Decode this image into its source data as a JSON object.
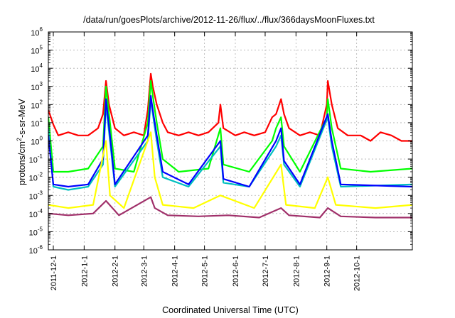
{
  "chart_data": {
    "type": "line",
    "title": "/data/run/goesPlots/archive/2012-11-26/flux/../flux/366daysMoonFluxes.txt",
    "xlabel": "Coordinated Universal Time (UTC)",
    "ylabel_main": "protons/cm",
    "ylabel_sup": "2",
    "ylabel_tail": "-s-sr-MeV",
    "x_range": [
      "2011-11-26",
      "2012-11-26"
    ],
    "ylim": [
      1e-06,
      1000000.0
    ],
    "y_scale": "log",
    "grid": true,
    "legend": "none",
    "x_ticks": [
      {
        "date": "2011-12-01",
        "label": "2011-12-1"
      },
      {
        "date": "2012-01-01",
        "label": "2012-1-1"
      },
      {
        "date": "2012-02-01",
        "label": "2012-2-1"
      },
      {
        "date": "2012-03-01",
        "label": "2012-3-1"
      },
      {
        "date": "2012-04-01",
        "label": "2012-4-1"
      },
      {
        "date": "2012-05-01",
        "label": "2012-5-1"
      },
      {
        "date": "2012-06-01",
        "label": "2012-6-1"
      },
      {
        "date": "2012-07-01",
        "label": "2012-7-1"
      },
      {
        "date": "2012-08-01",
        "label": "2012-8-1"
      },
      {
        "date": "2012-09-01",
        "label": "2012-9-1"
      },
      {
        "date": "2012-10-01",
        "label": "2012-10-1"
      }
    ],
    "y_ticks": [
      {
        "exp": -6,
        "base": "10",
        "sup": "-6"
      },
      {
        "exp": -5,
        "base": "10",
        "sup": "-5"
      },
      {
        "exp": -4,
        "base": "10",
        "sup": "-4"
      },
      {
        "exp": -3,
        "base": "10",
        "sup": "-3"
      },
      {
        "exp": -2,
        "base": "10",
        "sup": "-2"
      },
      {
        "exp": -1,
        "base": "10",
        "sup": "-1"
      },
      {
        "exp": 0,
        "base": "10",
        "sup": "0"
      },
      {
        "exp": 1,
        "base": "10",
        "sup": "1"
      },
      {
        "exp": 2,
        "base": "10",
        "sup": "2"
      },
      {
        "exp": 3,
        "base": "10",
        "sup": "3"
      },
      {
        "exp": 4,
        "base": "10",
        "sup": "4"
      },
      {
        "exp": 5,
        "base": "10",
        "sup": "5"
      },
      {
        "exp": 6,
        "base": "10",
        "sup": "6"
      }
    ],
    "series": [
      {
        "color": "#ff0000",
        "values": [
          [
            "2011-11-26",
            50
          ],
          [
            "2011-12-01",
            8
          ],
          [
            "2011-12-06",
            2
          ],
          [
            "2011-12-16",
            3
          ],
          [
            "2011-12-26",
            2
          ],
          [
            "2012-01-05",
            2
          ],
          [
            "2012-01-15",
            5
          ],
          [
            "2012-01-20",
            30
          ],
          [
            "2012-01-23",
            2000
          ],
          [
            "2012-01-26",
            100
          ],
          [
            "2012-02-01",
            5
          ],
          [
            "2012-02-10",
            2
          ],
          [
            "2012-02-20",
            3
          ],
          [
            "2012-03-01",
            2
          ],
          [
            "2012-03-05",
            50
          ],
          [
            "2012-03-08",
            5000
          ],
          [
            "2012-03-10",
            1000
          ],
          [
            "2012-03-14",
            100
          ],
          [
            "2012-03-20",
            10
          ],
          [
            "2012-03-25",
            3
          ],
          [
            "2012-04-05",
            2
          ],
          [
            "2012-04-15",
            3
          ],
          [
            "2012-04-25",
            2
          ],
          [
            "2012-05-05",
            3
          ],
          [
            "2012-05-15",
            10
          ],
          [
            "2012-05-17",
            100
          ],
          [
            "2012-05-20",
            5
          ],
          [
            "2012-06-01",
            2
          ],
          [
            "2012-06-10",
            3
          ],
          [
            "2012-06-20",
            2
          ],
          [
            "2012-07-01",
            3
          ],
          [
            "2012-07-08",
            20
          ],
          [
            "2012-07-12",
            30
          ],
          [
            "2012-07-17",
            200
          ],
          [
            "2012-07-20",
            30
          ],
          [
            "2012-07-25",
            5
          ],
          [
            "2012-08-05",
            2
          ],
          [
            "2012-08-15",
            3
          ],
          [
            "2012-08-25",
            2
          ],
          [
            "2012-09-01",
            100
          ],
          [
            "2012-09-02",
            2000
          ],
          [
            "2012-09-06",
            100
          ],
          [
            "2012-09-12",
            5
          ],
          [
            "2012-09-22",
            2
          ],
          [
            "2012-10-05",
            2
          ],
          [
            "2012-10-15",
            1
          ],
          [
            "2012-10-25",
            3
          ],
          [
            "2012-11-05",
            2
          ],
          [
            "2012-11-15",
            1
          ],
          [
            "2012-11-26",
            1
          ]
        ]
      },
      {
        "color": "#00ff00",
        "values": [
          [
            "2011-11-26",
            20
          ],
          [
            "2011-12-01",
            0.02
          ],
          [
            "2011-12-16",
            0.02
          ],
          [
            "2012-01-05",
            0.03
          ],
          [
            "2012-01-20",
            0.5
          ],
          [
            "2012-01-23",
            1000
          ],
          [
            "2012-01-27",
            10
          ],
          [
            "2012-02-01",
            0.03
          ],
          [
            "2012-02-20",
            0.02
          ],
          [
            "2012-03-05",
            10
          ],
          [
            "2012-03-08",
            2000
          ],
          [
            "2012-03-10",
            300
          ],
          [
            "2012-03-14",
            10
          ],
          [
            "2012-03-20",
            0.1
          ],
          [
            "2012-04-05",
            0.02
          ],
          [
            "2012-05-05",
            0.03
          ],
          [
            "2012-05-17",
            5
          ],
          [
            "2012-05-20",
            0.05
          ],
          [
            "2012-06-15",
            0.02
          ],
          [
            "2012-07-08",
            1
          ],
          [
            "2012-07-12",
            5
          ],
          [
            "2012-07-17",
            20
          ],
          [
            "2012-07-20",
            0.5
          ],
          [
            "2012-08-05",
            0.02
          ],
          [
            "2012-09-01",
            20
          ],
          [
            "2012-09-02",
            200
          ],
          [
            "2012-09-06",
            5
          ],
          [
            "2012-09-15",
            0.03
          ],
          [
            "2012-10-15",
            0.02
          ],
          [
            "2012-11-26",
            0.03
          ]
        ]
      },
      {
        "color": "#00bfbf",
        "values": [
          [
            "2011-11-26",
            5
          ],
          [
            "2011-12-01",
            0.003
          ],
          [
            "2011-12-16",
            0.002
          ],
          [
            "2012-01-05",
            0.003
          ],
          [
            "2012-01-20",
            0.05
          ],
          [
            "2012-01-23",
            100
          ],
          [
            "2012-01-27",
            1
          ],
          [
            "2012-02-01",
            0.003
          ],
          [
            "2012-03-05",
            1
          ],
          [
            "2012-03-08",
            200
          ],
          [
            "2012-03-10",
            30
          ],
          [
            "2012-03-14",
            1
          ],
          [
            "2012-03-20",
            0.01
          ],
          [
            "2012-04-15",
            0.003
          ],
          [
            "2012-05-17",
            0.5
          ],
          [
            "2012-05-20",
            0.005
          ],
          [
            "2012-06-15",
            0.003
          ],
          [
            "2012-07-12",
            0.5
          ],
          [
            "2012-07-17",
            2
          ],
          [
            "2012-07-20",
            0.05
          ],
          [
            "2012-08-05",
            0.003
          ],
          [
            "2012-09-02",
            20
          ],
          [
            "2012-09-06",
            0.5
          ],
          [
            "2012-09-15",
            0.003
          ],
          [
            "2012-11-26",
            0.004
          ]
        ]
      },
      {
        "color": "#0000ff",
        "values": [
          [
            "2011-11-26",
            2
          ],
          [
            "2011-12-01",
            0.004
          ],
          [
            "2011-12-16",
            0.003
          ],
          [
            "2012-01-05",
            0.004
          ],
          [
            "2012-01-20",
            0.1
          ],
          [
            "2012-01-23",
            200
          ],
          [
            "2012-01-27",
            2
          ],
          [
            "2012-02-01",
            0.004
          ],
          [
            "2012-03-05",
            2
          ],
          [
            "2012-03-08",
            300
          ],
          [
            "2012-03-10",
            50
          ],
          [
            "2012-03-14",
            2
          ],
          [
            "2012-03-20",
            0.02
          ],
          [
            "2012-04-15",
            0.004
          ],
          [
            "2012-05-17",
            1
          ],
          [
            "2012-05-20",
            0.008
          ],
          [
            "2012-06-15",
            0.003
          ],
          [
            "2012-07-12",
            1
          ],
          [
            "2012-07-17",
            5
          ],
          [
            "2012-07-20",
            0.08
          ],
          [
            "2012-08-05",
            0.004
          ],
          [
            "2012-09-02",
            30
          ],
          [
            "2012-09-06",
            1
          ],
          [
            "2012-09-15",
            0.004
          ],
          [
            "2012-11-26",
            0.003
          ]
        ]
      },
      {
        "color": "#ffff00",
        "values": [
          [
            "2011-11-26",
            0.0003
          ],
          [
            "2011-12-16",
            0.0002
          ],
          [
            "2012-01-10",
            0.0003
          ],
          [
            "2012-01-23",
            1
          ],
          [
            "2012-01-27",
            0.001
          ],
          [
            "2012-02-10",
            0.0002
          ],
          [
            "2012-03-08",
            3
          ],
          [
            "2012-03-12",
            0.01
          ],
          [
            "2012-03-20",
            0.0003
          ],
          [
            "2012-04-20",
            0.0002
          ],
          [
            "2012-05-17",
            0.001
          ],
          [
            "2012-06-20",
            0.0002
          ],
          [
            "2012-07-17",
            0.05
          ],
          [
            "2012-07-22",
            0.0003
          ],
          [
            "2012-08-20",
            0.0002
          ],
          [
            "2012-09-02",
            0.01
          ],
          [
            "2012-09-10",
            0.0003
          ],
          [
            "2012-10-20",
            0.0002
          ],
          [
            "2012-11-26",
            0.0003
          ]
        ]
      },
      {
        "color": "#a0306a",
        "values": [
          [
            "2011-11-26",
            0.0001
          ],
          [
            "2011-12-16",
            8e-05
          ],
          [
            "2012-01-10",
            0.0001
          ],
          [
            "2012-01-23",
            0.0005
          ],
          [
            "2012-02-05",
            8e-05
          ],
          [
            "2012-03-08",
            0.0008
          ],
          [
            "2012-03-12",
            0.0002
          ],
          [
            "2012-03-25",
            8e-05
          ],
          [
            "2012-04-25",
            7e-05
          ],
          [
            "2012-05-25",
            8e-05
          ],
          [
            "2012-06-25",
            6e-05
          ],
          [
            "2012-07-17",
            0.0002
          ],
          [
            "2012-07-25",
            8e-05
          ],
          [
            "2012-08-25",
            6e-05
          ],
          [
            "2012-09-02",
            0.0002
          ],
          [
            "2012-09-15",
            7e-05
          ],
          [
            "2012-10-20",
            6e-05
          ],
          [
            "2012-11-26",
            6e-05
          ]
        ]
      }
    ]
  }
}
